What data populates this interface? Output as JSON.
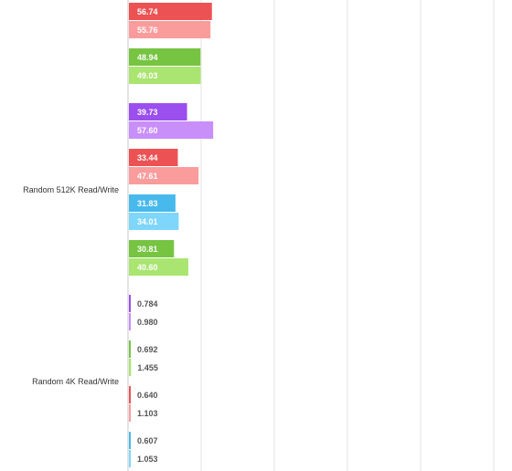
{
  "chart_data": {
    "type": "bar",
    "orientation": "horizontal",
    "grid": true,
    "xlim": [
      0,
      200
    ],
    "categories": [
      "Random 512K Read/Write",
      "Random 4K Read/Write"
    ],
    "colors": {
      "red_dark": "#ec5253",
      "red_light": "#fb9c9c",
      "green_dark": "#76c442",
      "green_light": "#a9e570",
      "purple_dark": "#9b4fee",
      "purple_light": "#c88ef9",
      "blue_dark": "#48b9ec",
      "blue_light": "#7fd6fc"
    },
    "groups": [
      {
        "category": "",
        "bars": [
          {
            "label": "56.74",
            "value": 56.74,
            "color": "red_dark"
          },
          {
            "label": "55.76",
            "value": 55.76,
            "color": "red_light"
          },
          {
            "label": "48.94",
            "value": 48.94,
            "color": "green_dark"
          },
          {
            "label": "49.03",
            "value": 49.03,
            "color": "green_light"
          }
        ]
      },
      {
        "category": "Random 512K Read/Write",
        "bars": [
          {
            "label": "39.73",
            "value": 39.73,
            "color": "purple_dark"
          },
          {
            "label": "57.60",
            "value": 57.6,
            "color": "purple_light"
          },
          {
            "label": "33.44",
            "value": 33.44,
            "color": "red_dark"
          },
          {
            "label": "47.61",
            "value": 47.61,
            "color": "red_light"
          },
          {
            "label": "31.83",
            "value": 31.83,
            "color": "blue_dark"
          },
          {
            "label": "34.01",
            "value": 34.01,
            "color": "blue_light"
          },
          {
            "label": "30.81",
            "value": 30.81,
            "color": "green_dark"
          },
          {
            "label": "40.60",
            "value": 40.6,
            "color": "green_light"
          }
        ]
      },
      {
        "category": "Random 4K Read/Write",
        "bars": [
          {
            "label": "0.784",
            "value": 0.784,
            "color": "purple_dark"
          },
          {
            "label": "0.980",
            "value": 0.98,
            "color": "purple_light"
          },
          {
            "label": "0.692",
            "value": 0.692,
            "color": "green_dark"
          },
          {
            "label": "1.455",
            "value": 1.455,
            "color": "green_light"
          },
          {
            "label": "0.640",
            "value": 0.64,
            "color": "red_dark"
          },
          {
            "label": "1.103",
            "value": 1.103,
            "color": "red_light"
          },
          {
            "label": "0.607",
            "value": 0.607,
            "color": "blue_dark"
          },
          {
            "label": "1.053",
            "value": 1.053,
            "color": "blue_light"
          }
        ]
      }
    ]
  }
}
